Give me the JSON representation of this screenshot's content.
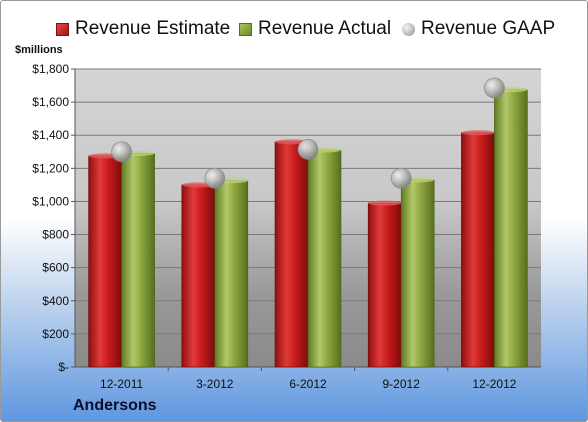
{
  "chart_data": {
    "type": "bar",
    "categories": [
      "12-2011",
      "3-2012",
      "6-2012",
      "9-2012",
      "12-2012"
    ],
    "series": [
      {
        "name": "Revenue Estimate",
        "kind": "bar",
        "color": "#c0161b",
        "values": [
          1275,
          1100,
          1360,
          990,
          1415
        ]
      },
      {
        "name": "Revenue Actual",
        "kind": "bar",
        "color": "#8aa33b",
        "values": [
          1290,
          1125,
          1310,
          1130,
          1675
        ]
      },
      {
        "name": "Revenue GAAP",
        "kind": "marker",
        "color": "#a9a9a9",
        "values": [
          1300,
          1140,
          1315,
          1140,
          1685
        ]
      }
    ],
    "ylabel": "$millions",
    "ylim": [
      0,
      1800
    ],
    "yticks": [
      0,
      200,
      400,
      600,
      800,
      1000,
      1200,
      1400,
      1600,
      1800
    ],
    "ytick_labels": [
      "$-",
      "$200",
      "$400",
      "$600",
      "$800",
      "$1,000",
      "$1,200",
      "$1,400",
      "$1,600",
      "$1,800"
    ],
    "grid": true,
    "legend": "top"
  },
  "legend": {
    "estimate": "Revenue Estimate",
    "actual": "Revenue Actual",
    "gaap": "Revenue GAAP"
  },
  "units_label": "$millions",
  "company": "Andersons"
}
